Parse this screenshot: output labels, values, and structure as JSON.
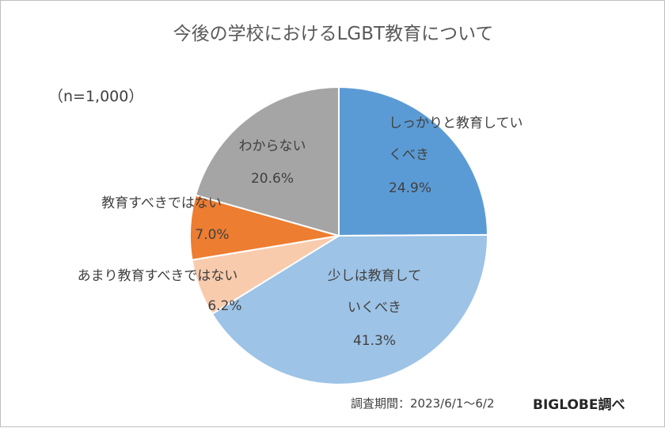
{
  "chart_data": {
    "type": "pie",
    "title": "今後の学校におけるLGBT教育について",
    "sample_note": "（n=1,000）",
    "slices": [
      {
        "name": "しっかりと教育していくべき",
        "label_lines": [
          "しっかりと教育してい",
          "くべき"
        ],
        "value": 24.9,
        "value_label": "24.9%",
        "color": "#5B9BD5"
      },
      {
        "name": "少しは教育していくべき",
        "label_lines": [
          "少しは教育して",
          "いくべき"
        ],
        "value": 41.3,
        "value_label": "41.3%",
        "color": "#9DC3E6"
      },
      {
        "name": "あまり教育すべきではない",
        "label_lines": [
          "あまり教育すべきではない"
        ],
        "value": 6.2,
        "value_label": "6.2%",
        "color": "#F8CBAD"
      },
      {
        "name": "教育すべきではない",
        "label_lines": [
          "教育すべきではない"
        ],
        "value": 7.0,
        "value_label": "7.0%",
        "color": "#ED7D31"
      },
      {
        "name": "わからない",
        "label_lines": [
          "わからない"
        ],
        "value": 20.6,
        "value_label": "20.6%",
        "color": "#A5A5A5"
      }
    ]
  },
  "footer": {
    "period": "調査期間：2023/6/1～6/2",
    "source": "BIGLOBE調べ"
  }
}
